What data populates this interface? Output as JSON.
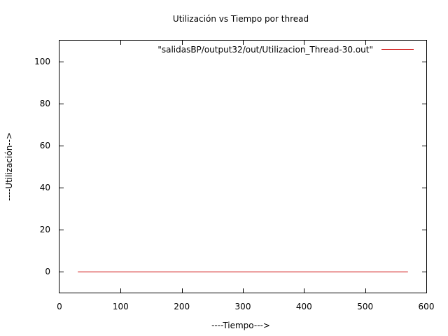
{
  "chart_data": {
    "type": "line",
    "title": "Utilización vs Tiempo por thread",
    "xlabel": "----Tiempo--->",
    "ylabel": "----Utilización-->",
    "xlim": [
      0,
      600
    ],
    "ylim": [
      -10,
      110
    ],
    "xticks": [
      0,
      100,
      200,
      300,
      400,
      500,
      600
    ],
    "yticks": [
      0,
      20,
      40,
      60,
      80,
      100
    ],
    "grid": false,
    "legend_position": "top-right",
    "series": [
      {
        "name": "\"salidasBP/output32/out/Utilizacion_Thread-30.out\"",
        "color": "#cc0000",
        "x": [
          30,
          570
        ],
        "y": [
          0,
          0
        ]
      }
    ]
  }
}
